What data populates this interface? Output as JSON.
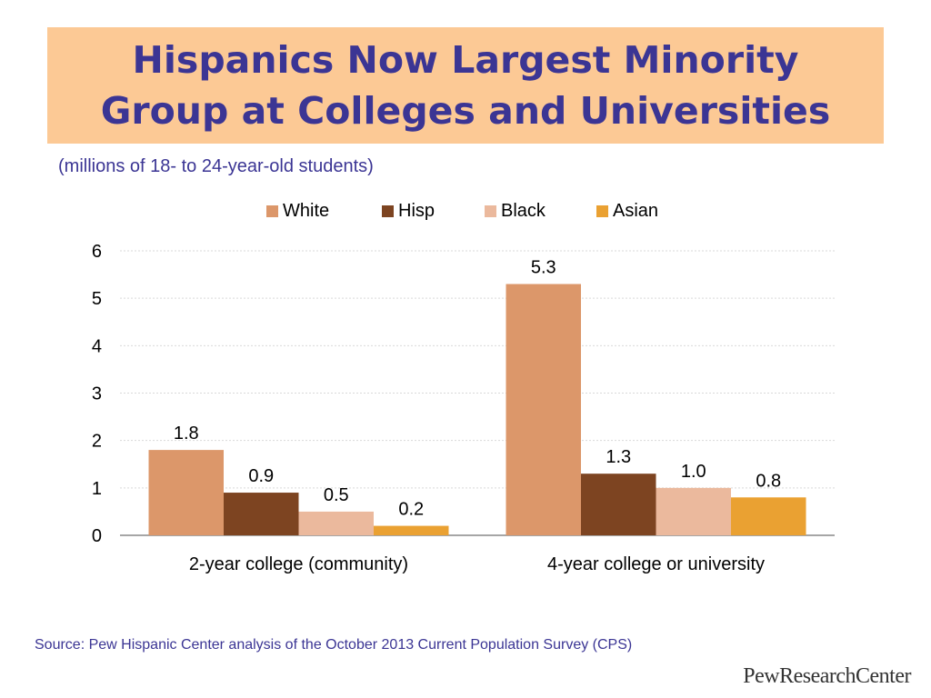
{
  "slide": {
    "title_line1": "Hispanics Now Largest Minority",
    "title_line2": "Group at Colleges and Universities",
    "subtitle": "(millions of 18- to 24-year-old students)",
    "source": "Source: Pew Hispanic Center analysis of the October 2013 Current Population Survey (CPS)",
    "logo": "PewResearchCenter",
    "colors": {
      "title": "#3b3594",
      "title_background": "#fcc995"
    }
  },
  "chart_data": {
    "type": "bar",
    "title": "",
    "xlabel": "",
    "ylabel": "",
    "categories": [
      "2-year college (community)",
      "4-year college or university"
    ],
    "series": [
      {
        "name": "White",
        "values": [
          1.8,
          5.3
        ],
        "labels": [
          "1.8",
          "5.3"
        ],
        "color": "#dc976a"
      },
      {
        "name": "Hisp",
        "values": [
          0.9,
          1.3
        ],
        "labels": [
          "0.9",
          "1.3"
        ],
        "color": "#7d4421"
      },
      {
        "name": "Black",
        "values": [
          0.5,
          1.0
        ],
        "labels": [
          "0.5",
          "1.0"
        ],
        "color": "#ebb99d"
      },
      {
        "name": "Asian",
        "values": [
          0.2,
          0.8
        ],
        "labels": [
          "0.2",
          "0.8"
        ],
        "color": "#eaa132"
      }
    ],
    "ylim": [
      0,
      6
    ],
    "yticks": [
      "0",
      "1",
      "2",
      "3",
      "4",
      "5",
      "6"
    ],
    "grid": true,
    "legend_position": "top"
  }
}
